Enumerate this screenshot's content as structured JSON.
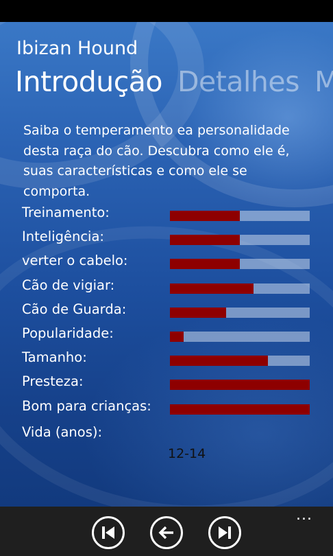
{
  "app": {
    "title": "Ibizan Hound"
  },
  "pivot": {
    "tabs": [
      {
        "label": "Introdução",
        "active": true
      },
      {
        "label": "Detalhes",
        "active": false
      },
      {
        "label": "M",
        "active": false
      }
    ]
  },
  "intro": {
    "text": "Saiba o temperamento ea personalidade desta raça do cão. Descubra como ele é, suas características e como ele se comporta."
  },
  "stats": [
    {
      "label": "Treinamento:",
      "level": 0.5
    },
    {
      "label": "Inteligência:",
      "level": 0.5
    },
    {
      "label": "verter o cabelo:",
      "level": 0.5
    },
    {
      "label": "Cão de vigiar:",
      "level": 0.6
    },
    {
      "label": "Cão de Guarda:",
      "level": 0.4
    },
    {
      "label": "Popularidade:",
      "level": 0.1
    },
    {
      "label": "Tamanho:",
      "level": 0.7
    },
    {
      "label": "Presteza:",
      "level": 1.0
    },
    {
      "label": "Bom para crianças:",
      "level": 1.0
    }
  ],
  "life": {
    "label": "Vida (anos):",
    "value": "12-14"
  },
  "app_bar": {
    "buttons": [
      {
        "icon": "skip-previous-icon"
      },
      {
        "icon": "back-arrow-icon"
      },
      {
        "icon": "skip-next-icon"
      }
    ],
    "more_label": "..."
  },
  "colors": {
    "bar_fill": "#8e0000",
    "bar_track": "#c8d7eb",
    "background": "#1d4f9f",
    "app_bar": "#1f1f1f"
  }
}
